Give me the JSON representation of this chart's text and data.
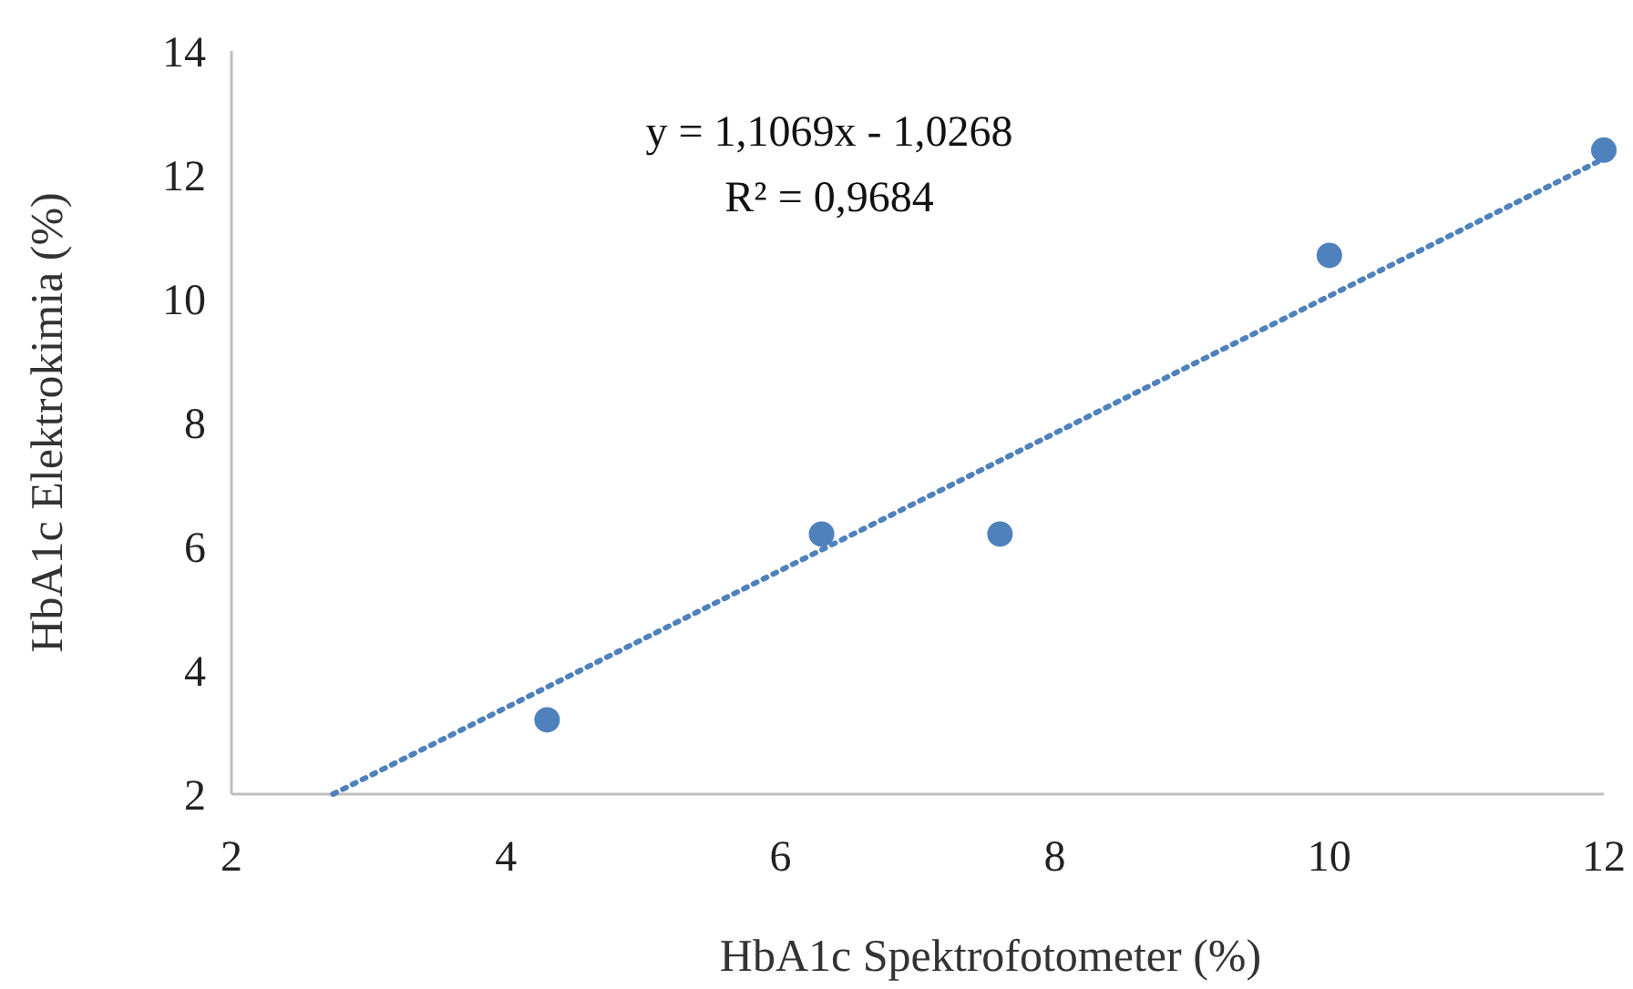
{
  "chart_data": {
    "type": "scatter",
    "xlabel": "HbA1c Spektrofotometer (%)",
    "ylabel": "HbA1c Elektrokimia (%)",
    "x": [
      4.3,
      6.3,
      7.6,
      10,
      12
    ],
    "series": [
      {
        "color": "#4f81bd",
        "values": [
          3.2,
          6.2,
          6.2,
          10.7,
          12.4
        ],
        "marker": "circle"
      },
      {
        "type": "line",
        "color": "#4f81bd",
        "x": [
          2.74,
          12
        ],
        "values": [
          2.0,
          12.26
        ],
        "line_style": "dotted"
      }
    ],
    "annotations": [
      "y = 1,1069x - 1,0268",
      "R² = 0,9684"
    ],
    "xlim": [
      2,
      12
    ],
    "xticks": [
      2,
      4,
      6,
      8,
      10,
      12
    ],
    "ylim": [
      2,
      14
    ],
    "yticks": [
      2,
      4,
      6,
      8,
      10,
      12,
      14
    ],
    "grid": false
  }
}
